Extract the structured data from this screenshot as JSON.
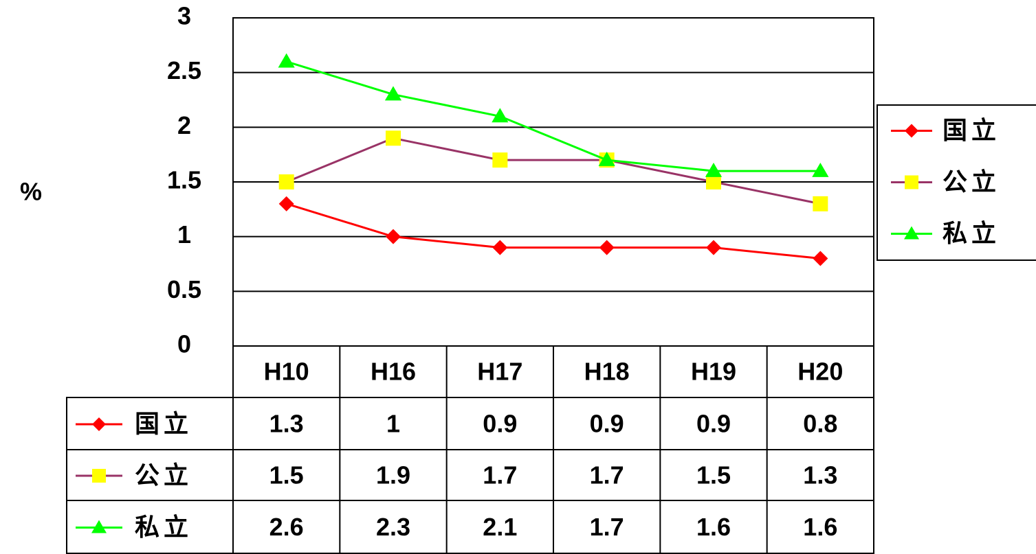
{
  "chart_data": {
    "type": "line",
    "y_label": "%",
    "categories": [
      "H10",
      "H16",
      "H17",
      "H18",
      "H19",
      "H20"
    ],
    "series": [
      {
        "name": "国立",
        "color": "#ff0000",
        "marker": "diamond",
        "marker_color": "#ff0000",
        "values": [
          1.3,
          1,
          0.9,
          0.9,
          0.9,
          0.8
        ]
      },
      {
        "name": "公立",
        "color": "#993366",
        "marker": "square",
        "marker_color": "#ffff00",
        "values": [
          1.5,
          1.9,
          1.7,
          1.7,
          1.5,
          1.3
        ]
      },
      {
        "name": "私立",
        "color": "#00ff00",
        "marker": "triangle",
        "marker_color": "#00ff00",
        "values": [
          2.6,
          2.3,
          2.1,
          1.7,
          1.6,
          1.6
        ]
      }
    ],
    "ylim": [
      0,
      3
    ],
    "yticks": [
      0,
      0.5,
      1,
      1.5,
      2,
      2.5,
      3
    ],
    "grid": true,
    "legend": "right",
    "data_table": true
  }
}
